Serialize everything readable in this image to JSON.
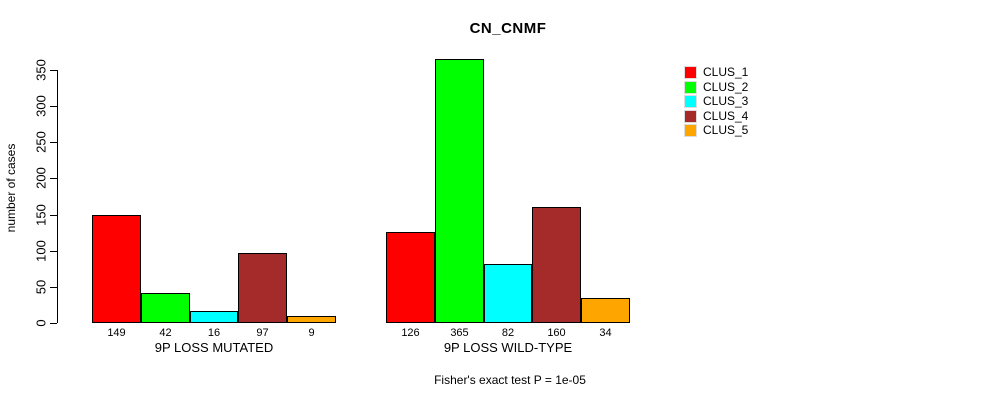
{
  "chart_data": {
    "type": "bar",
    "title": "CN_CNMF",
    "ylabel": "number of cases",
    "ylim": [
      0,
      350
    ],
    "yticks": [
      0,
      50,
      100,
      150,
      200,
      250,
      300,
      350
    ],
    "grid": false,
    "legend_position": "right",
    "legend": [
      "CLUS_1",
      "CLUS_2",
      "CLUS_3",
      "CLUS_4",
      "CLUS_5"
    ],
    "colors": [
      "#ff0000",
      "#00ff00",
      "#00ffff",
      "#a52a2a",
      "#ffa500"
    ],
    "groups": [
      {
        "label": "9P LOSS MUTATED",
        "values": [
          149,
          42,
          16,
          97,
          9
        ]
      },
      {
        "label": "9P LOSS WILD-TYPE",
        "values": [
          126,
          365,
          82,
          160,
          34
        ]
      }
    ],
    "footnote": "Fisher's exact test P = 1e-05"
  }
}
